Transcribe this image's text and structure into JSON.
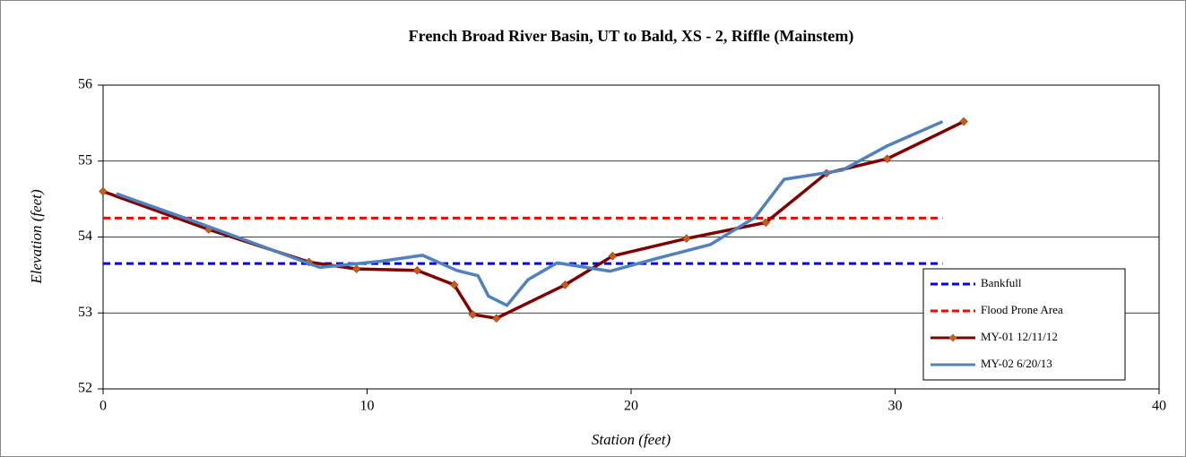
{
  "chart_data": {
    "type": "line",
    "title": "French Broad River Basin, UT to Bald, XS - 2, Riffle (Mainstem)",
    "x_label": "Station (feet)",
    "y_label": "Elevation (feet)",
    "xlim": [
      0,
      40
    ],
    "xticks": [
      0,
      10,
      20,
      30,
      40
    ],
    "ylim": [
      52,
      56
    ],
    "yticks": [
      52,
      53,
      54,
      55,
      56
    ],
    "grid": true,
    "legend": "right",
    "series": [
      {
        "name": "Bankfull",
        "color": "#0000ff",
        "dashed": true,
        "x": [
          0,
          31.8
        ],
        "values": [
          53.65,
          53.65
        ]
      },
      {
        "name": "Flood Prone Area",
        "color": "#ff0000",
        "dashed": true,
        "x": [
          0,
          31.8
        ],
        "values": [
          54.25,
          54.25
        ]
      },
      {
        "name": "MY-01 12/11/12",
        "color": "#800000",
        "marker": "diamond",
        "marker_color": "#c0601a",
        "x": [
          0,
          4,
          7.8,
          9.6,
          11.9,
          13.3,
          14.0,
          14.9,
          17.5,
          19.3,
          22.1,
          25.1,
          27.4,
          29.7,
          32.6
        ],
        "values": [
          54.6,
          54.1,
          53.67,
          53.58,
          53.56,
          53.37,
          52.98,
          52.93,
          53.37,
          53.75,
          53.98,
          54.19,
          54.84,
          55.03,
          55.52
        ]
      },
      {
        "name": "MY-02 6/20/13",
        "color": "#4f81bd",
        "x": [
          0.5,
          3.5,
          8.2,
          10.5,
          12.1,
          13.4,
          14.2,
          14.6,
          15.3,
          16.1,
          17.2,
          19.2,
          21.0,
          23.0,
          24.7,
          25.8,
          28.0,
          29.7,
          31.8
        ],
        "values": [
          54.57,
          54.2,
          53.6,
          53.68,
          53.76,
          53.56,
          53.49,
          53.22,
          53.1,
          53.44,
          53.66,
          53.55,
          53.72,
          53.9,
          54.26,
          54.76,
          54.88,
          55.2,
          55.52
        ]
      }
    ]
  }
}
